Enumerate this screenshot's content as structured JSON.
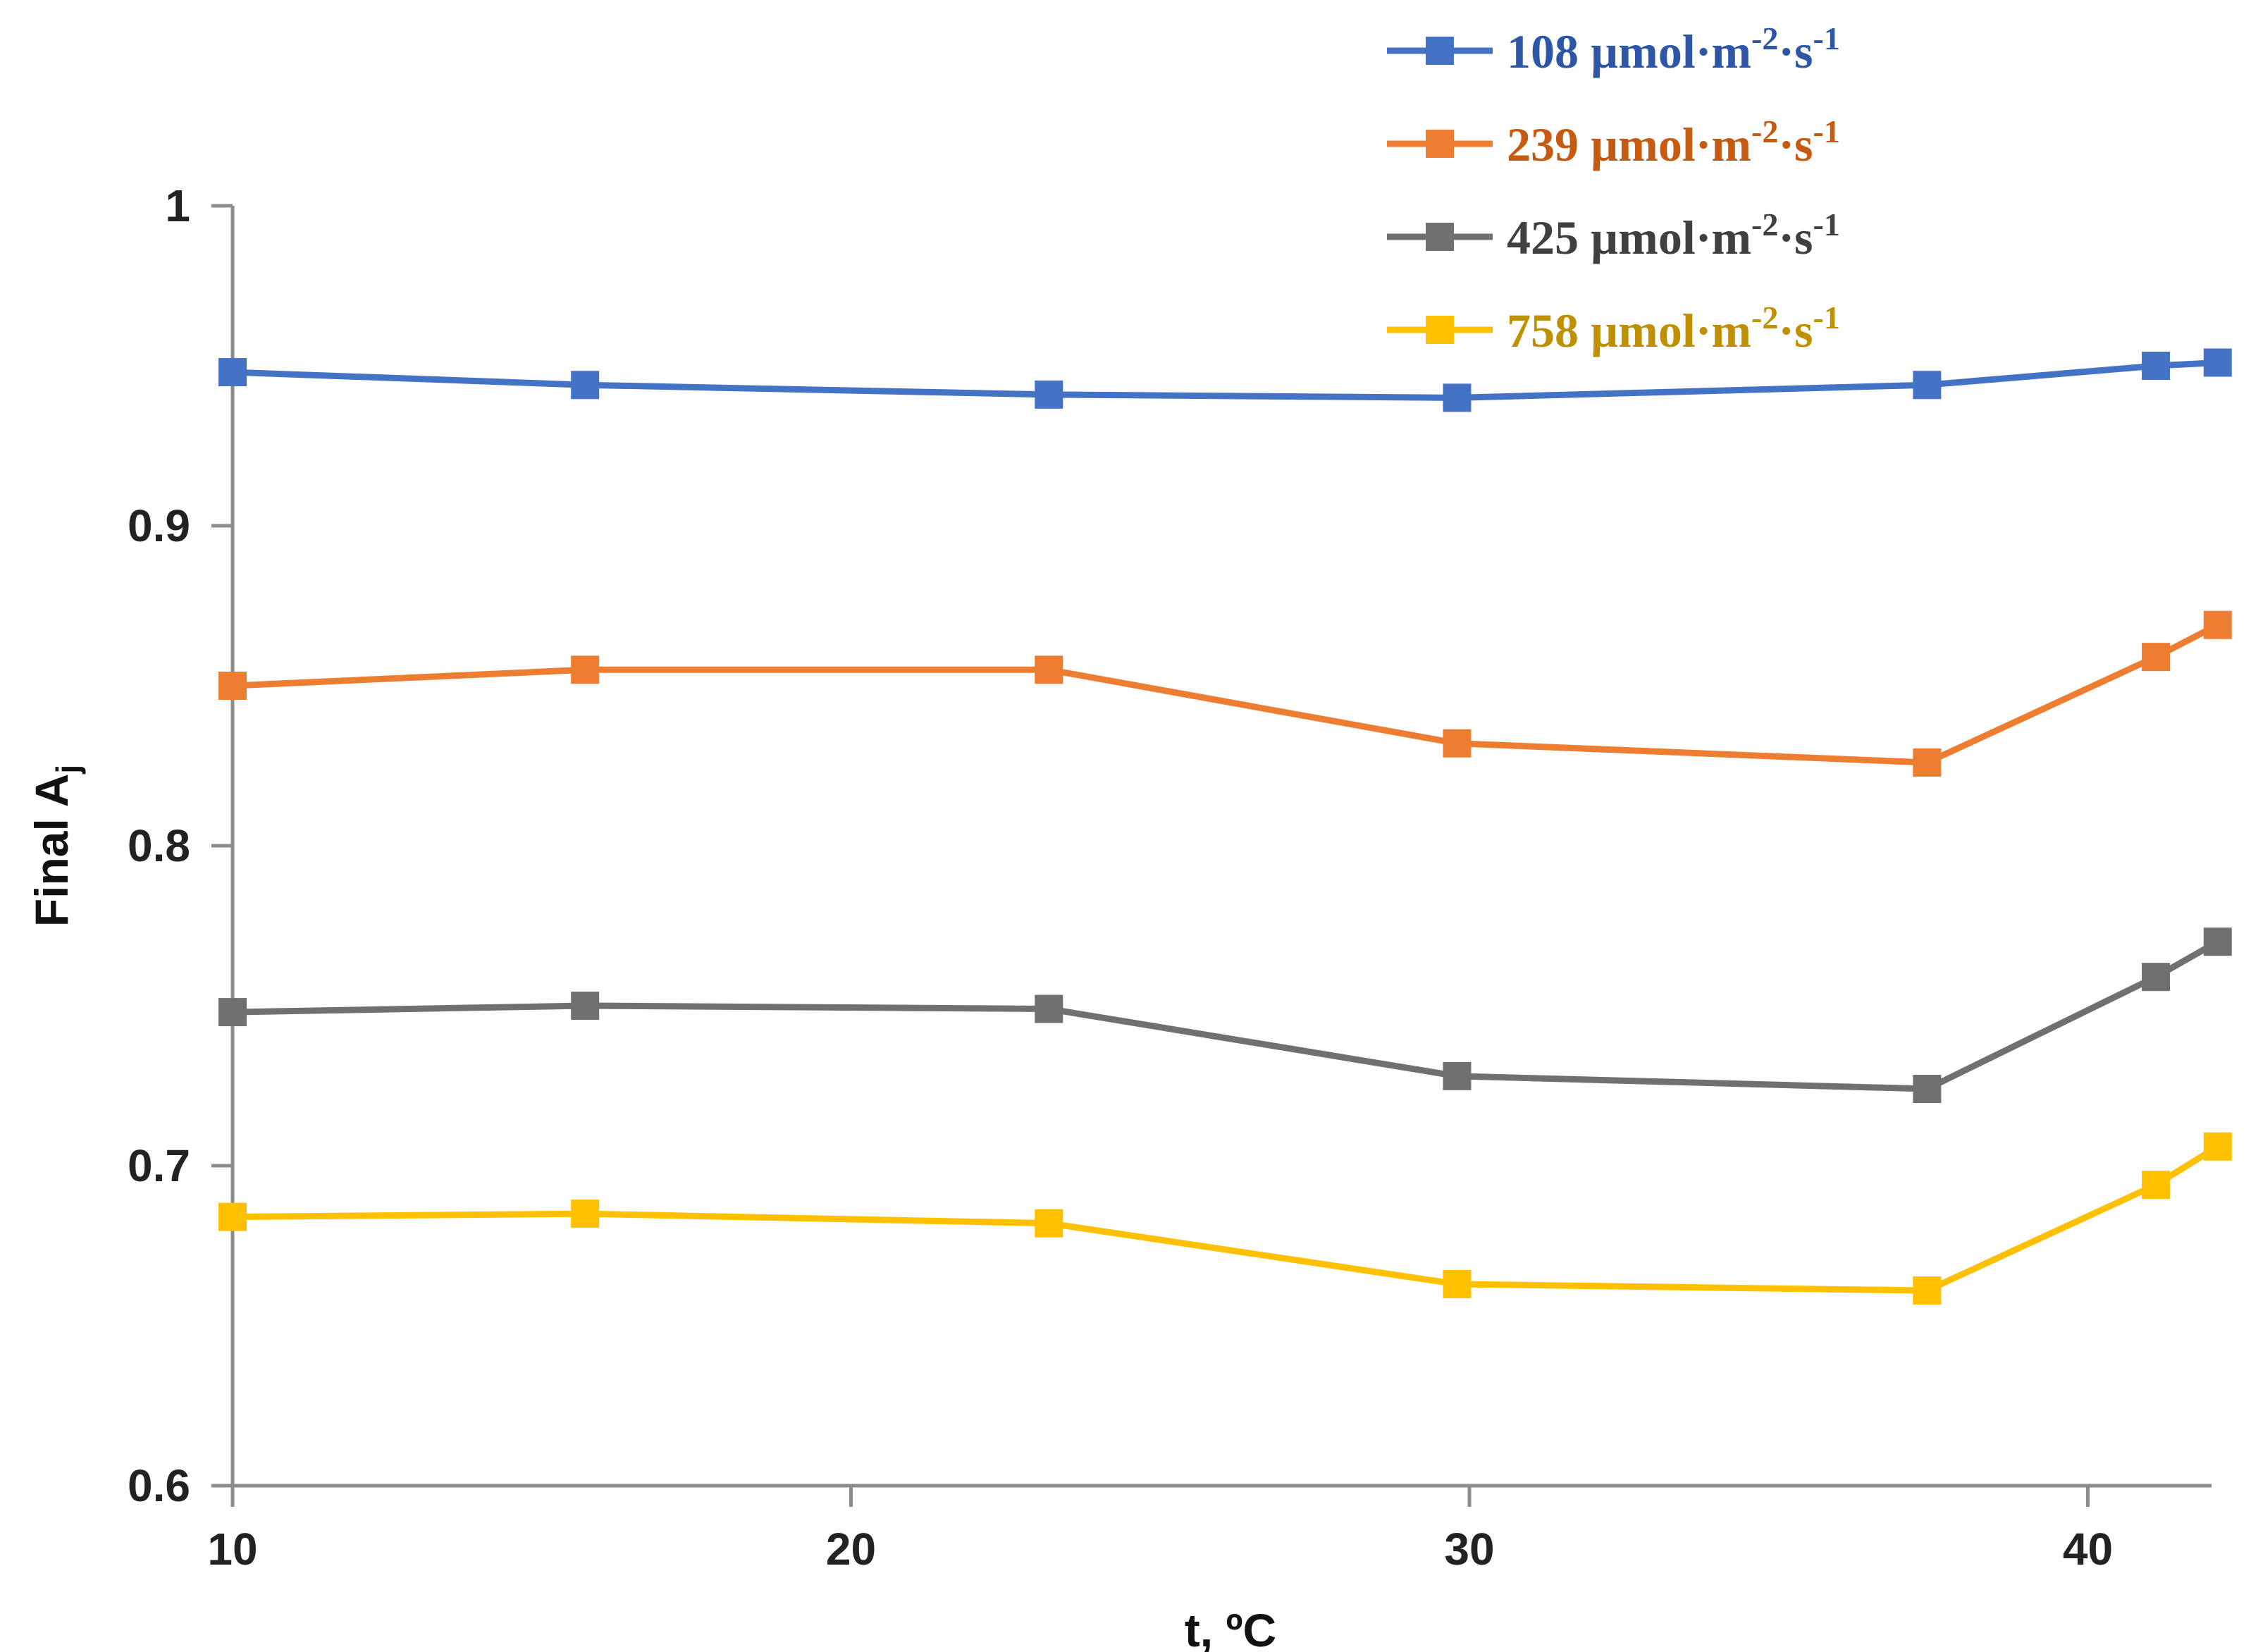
{
  "chart_data": {
    "type": "line",
    "title": "",
    "xlabel": "t, ºC",
    "ylabel": "Final A",
    "ylabel_sub": "j",
    "xlim": [
      10,
      42
    ],
    "ylim": [
      0.6,
      1.0
    ],
    "xticks": [
      "10",
      "20",
      "30",
      "40"
    ],
    "yticks": [
      "0.6",
      "0.7",
      "0.8",
      "0.9",
      "1"
    ],
    "grid": false,
    "legend_position": "top-right",
    "x": [
      10,
      15.7,
      23.2,
      29.8,
      37.4,
      41.1,
      42.1
    ],
    "series": [
      {
        "name": "108 µmol·m",
        "exp1": "-2",
        "mid": "·s",
        "exp2": "-1",
        "color": "#4472c4",
        "legend_color": "#2e56a6",
        "values": [
          0.948,
          0.944,
          0.941,
          0.94,
          0.944,
          0.95,
          0.951
        ]
      },
      {
        "name": "239 µmol·m",
        "exp1": "-2",
        "mid": "·s",
        "exp2": "-1",
        "color": "#ed7d31",
        "legend_color": "#c55a11",
        "values": [
          0.85,
          0.855,
          0.855,
          0.832,
          0.826,
          0.859,
          0.869
        ]
      },
      {
        "name": "425 µmol·m",
        "exp1": "-2",
        "mid": "·s",
        "exp2": "-1",
        "color": "#707070",
        "legend_color": "#404040",
        "values": [
          0.748,
          0.75,
          0.749,
          0.728,
          0.724,
          0.759,
          0.77
        ]
      },
      {
        "name": "758 µmol·m",
        "exp1": "-2",
        "mid": "·s",
        "exp2": "-1",
        "color": "#ffc000",
        "legend_color": "#bf9000",
        "values": [
          0.684,
          0.685,
          0.682,
          0.663,
          0.661,
          0.694,
          0.706
        ]
      }
    ]
  }
}
